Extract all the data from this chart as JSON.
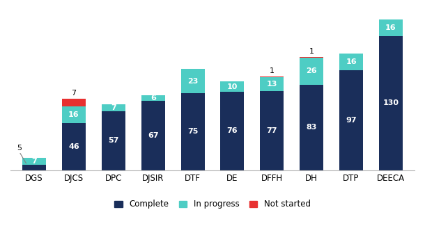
{
  "departments": [
    "DGS",
    "DJCS",
    "DPC",
    "DJSIR",
    "DTF",
    "DE",
    "DFFH",
    "DH",
    "DTP",
    "DEECA"
  ],
  "completed": [
    5,
    46,
    57,
    67,
    75,
    76,
    77,
    83,
    97,
    130
  ],
  "in_progress": [
    7,
    16,
    7,
    6,
    23,
    10,
    13,
    26,
    16,
    16
  ],
  "not_started": [
    0,
    7,
    0,
    0,
    0,
    0,
    1,
    1,
    0,
    0
  ],
  "color_complete": "#1a2e5a",
  "color_in_progress": "#4ecdc4",
  "color_not_started": "#e83030",
  "label_complete": "Complete",
  "label_in_progress": "In progress",
  "label_not_started": "Not started",
  "bar_width": 0.6,
  "ylim": [
    0,
    155
  ],
  "background_color": "#ffffff",
  "legend_fontsize": 8.5,
  "tick_fontsize": 8.5,
  "value_fontsize_inside": 8,
  "value_fontsize_outside": 8
}
